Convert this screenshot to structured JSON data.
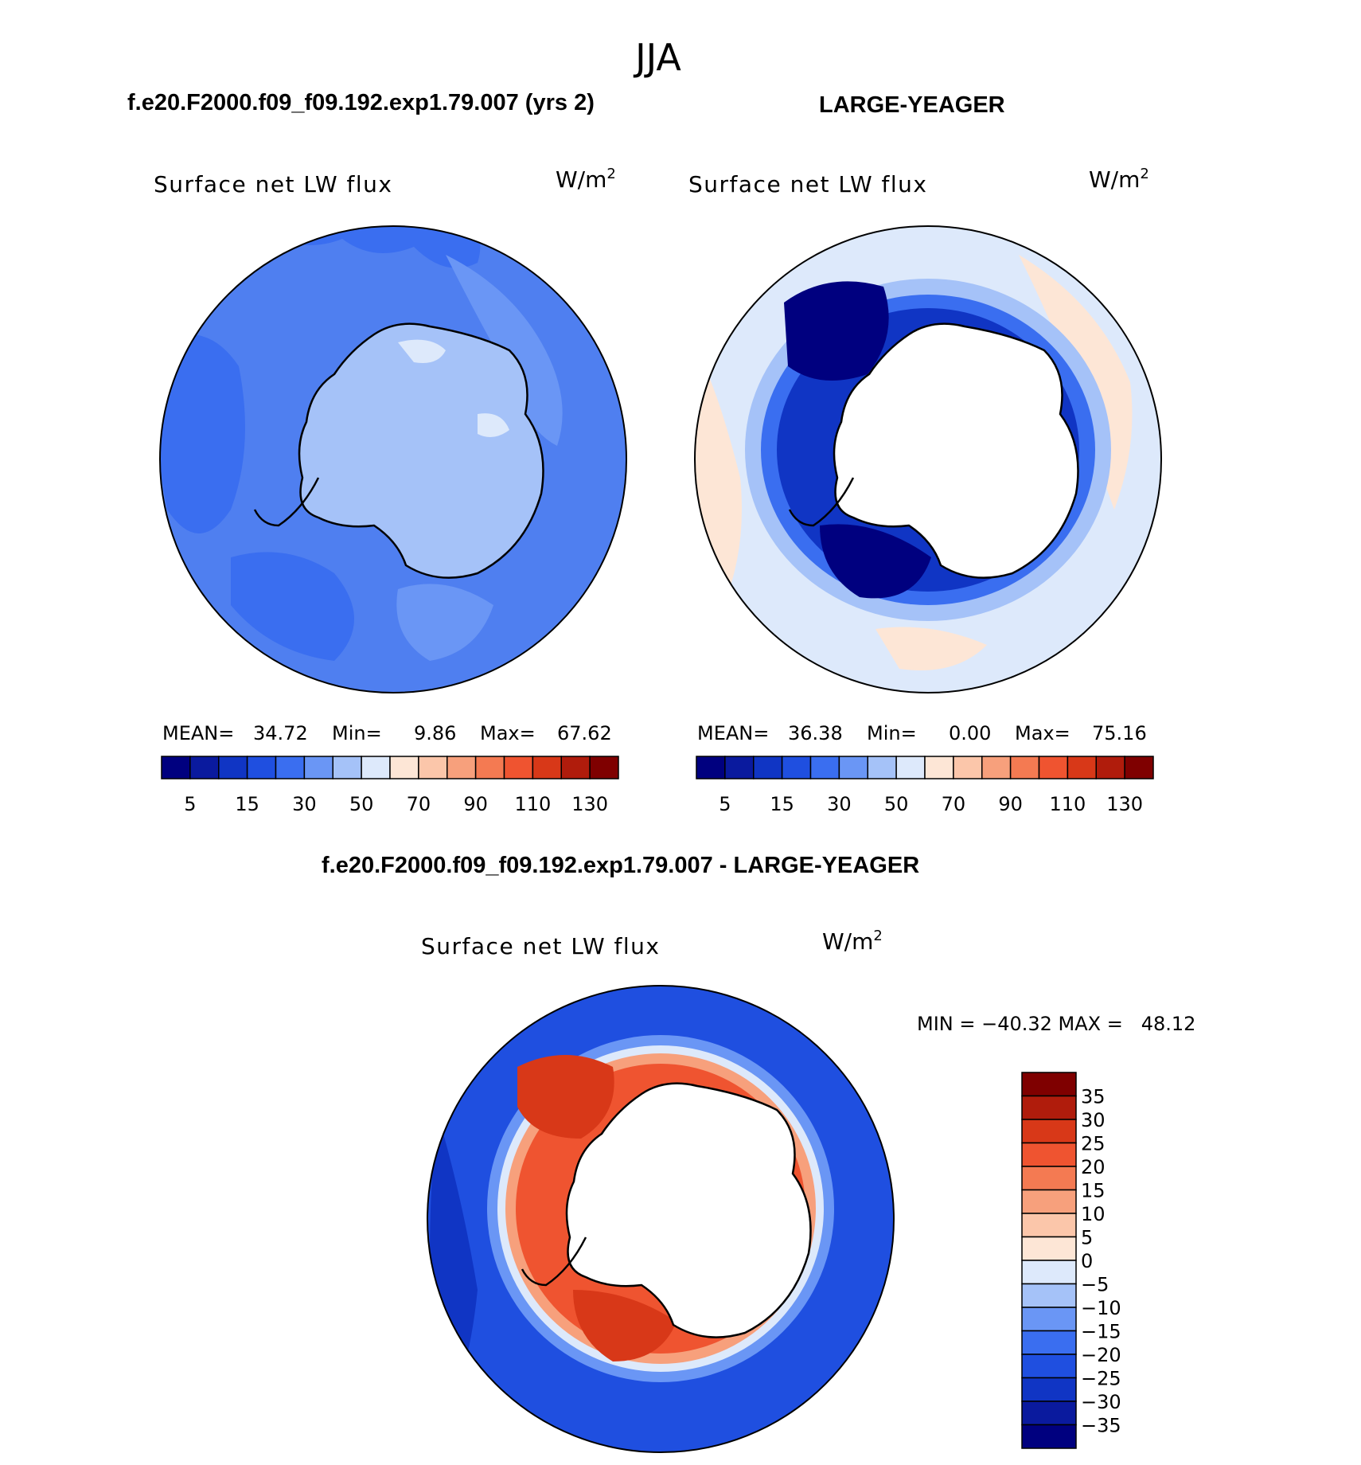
{
  "figure": {
    "season": "JJA"
  },
  "colors": {
    "abs_scale": [
      "#00007f",
      "#0a1a9e",
      "#1035c4",
      "#1f4fe0",
      "#3a6ef0",
      "#6a96f5",
      "#a5c2f8",
      "#dde9fb",
      "#fde6d6",
      "#fbc6aa",
      "#f7a07c",
      "#f47a52",
      "#ef5430",
      "#d83818",
      "#b01c0c",
      "#7f0000"
    ],
    "diff_scale": [
      "#00007f",
      "#0a1a9e",
      "#1035c4",
      "#1f4fe0",
      "#3a6ef0",
      "#6a96f5",
      "#a5c2f8",
      "#dde9fb",
      "#fde6d6",
      "#fbc6aa",
      "#f7a07c",
      "#f47a52",
      "#ef5430",
      "#d83818",
      "#b01c0c",
      "#7f0000"
    ]
  },
  "chart_data": [
    {
      "type": "heatmap",
      "projection": "south-polar-stereographic",
      "case_title": "f.e20.F2000.f09_f09.192.exp1.79.007 (yrs 2)",
      "variable_label": "Surface net LW flux",
      "units_base": "W/m",
      "units_exp": "2",
      "stats": {
        "mean_label": "MEAN=",
        "mean": "34.72",
        "min_label": "Min=",
        "min": "9.86",
        "max_label": "Max=",
        "max": "67.62"
      },
      "colorbar": {
        "orientation": "horizontal",
        "levels": [
          5,
          10,
          15,
          20,
          30,
          40,
          50,
          60,
          70,
          80,
          90,
          100,
          110,
          120,
          130
        ],
        "tick_labels": [
          "5",
          "15",
          "30",
          "50",
          "70",
          "90",
          "110",
          "130"
        ]
      }
    },
    {
      "type": "heatmap",
      "projection": "south-polar-stereographic",
      "case_title": "LARGE-YEAGER",
      "variable_label": "Surface net LW flux",
      "units_base": "W/m",
      "units_exp": "2",
      "stats": {
        "mean_label": "MEAN=",
        "mean": "36.38",
        "min_label": "Min=",
        "min": "0.00",
        "max_label": "Max=",
        "max": "75.16"
      },
      "colorbar": {
        "orientation": "horizontal",
        "levels": [
          5,
          10,
          15,
          20,
          30,
          40,
          50,
          60,
          70,
          80,
          90,
          100,
          110,
          120,
          130
        ],
        "tick_labels": [
          "5",
          "15",
          "30",
          "50",
          "70",
          "90",
          "110",
          "130"
        ]
      }
    },
    {
      "type": "heatmap",
      "projection": "south-polar-stereographic",
      "case_title": "f.e20.F2000.f09_f09.192.exp1.79.007 - LARGE-YEAGER",
      "variable_label": "Surface net LW flux",
      "units_base": "W/m",
      "units_exp": "2",
      "range_text": "MIN = −40.32 MAX =   48.12",
      "colorbar": {
        "orientation": "vertical",
        "levels": [
          35,
          30,
          25,
          20,
          15,
          10,
          5,
          0,
          -5,
          -10,
          -15,
          -20,
          -25,
          -30,
          -35
        ],
        "tick_labels": [
          "35",
          "30",
          "25",
          "20",
          "15",
          "10",
          "5",
          "0",
          "−5",
          "−10",
          "−15",
          "−20",
          "−25",
          "−30",
          "−35"
        ]
      }
    }
  ]
}
